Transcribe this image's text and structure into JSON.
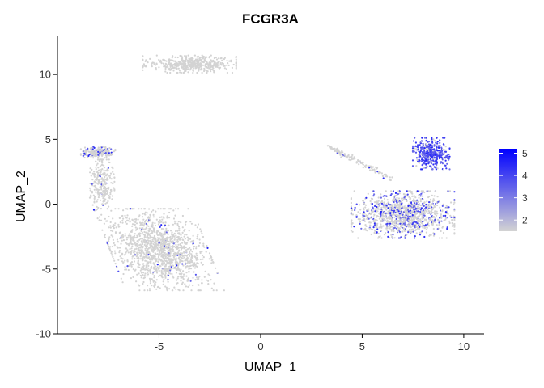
{
  "chart_data": {
    "type": "scatter",
    "title": "FCGR3A",
    "xlabel": "UMAP_1",
    "ylabel": "UMAP_2",
    "xlim": [
      -10,
      11
    ],
    "ylim": [
      -10,
      13
    ],
    "xticks": [
      -5,
      0,
      5,
      10
    ],
    "yticks": [
      -10,
      -5,
      0,
      5,
      10
    ],
    "grid": false,
    "legend": {
      "placement": "right",
      "min": 1.5,
      "max": 5.2,
      "ticks": [
        "2",
        "3",
        "4",
        "5"
      ],
      "colors": {
        "low": "#d3d3d3",
        "high": "#0000ff"
      }
    },
    "clusters": [
      {
        "region": "top cluster",
        "center": [
          -3.5,
          10.8
        ],
        "spread": [
          1.9,
          0.55
        ],
        "expression": 0.0
      },
      {
        "region": "left upper arm",
        "center": [
          -8.0,
          4.0
        ],
        "spread": [
          0.7,
          0.35
        ],
        "expression": 0.15
      },
      {
        "region": "left main mass",
        "center": [
          -5.0,
          -3.5
        ],
        "spread": [
          2.0,
          2.6
        ],
        "expression": 0.03
      },
      {
        "region": "left stalk",
        "center": [
          -7.8,
          1.5
        ],
        "spread": [
          0.5,
          1.6
        ],
        "expression": 0.02
      },
      {
        "region": "right lower mass",
        "center": [
          7.0,
          -0.8
        ],
        "spread": [
          2.1,
          1.5
        ],
        "expression": 0.25
      },
      {
        "region": "right high-expression cluster",
        "center": [
          8.4,
          3.9
        ],
        "spread": [
          0.75,
          1.0
        ],
        "expression": 0.85
      },
      {
        "region": "right diagonal streak",
        "center": [
          5.0,
          3.2
        ],
        "spread": [
          1.5,
          0.25
        ],
        "expression": 0.05
      }
    ]
  }
}
